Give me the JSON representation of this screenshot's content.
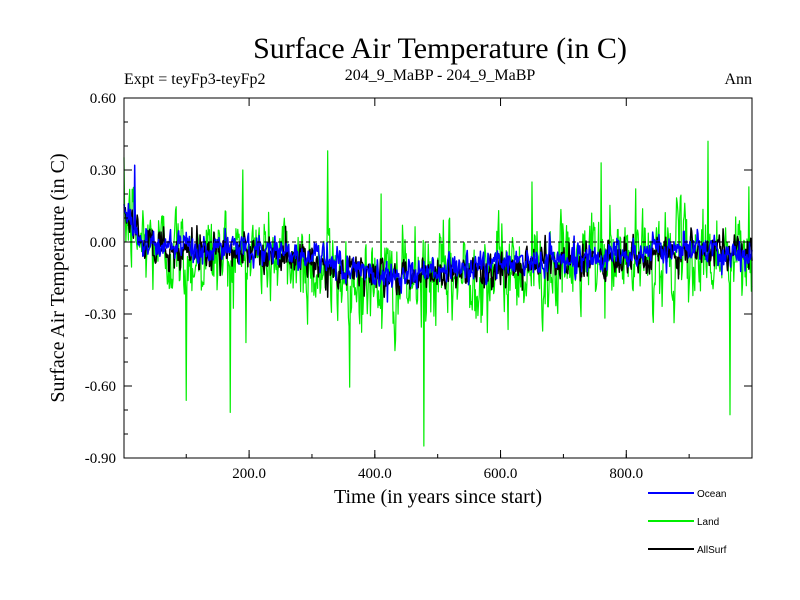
{
  "chart_data": {
    "type": "line",
    "title": "Surface Air Temperature (in C)",
    "subtitle_left": "Expt = teyFp3-teyFp2",
    "subtitle_center": "204_9_MaBP - 204_9_MaBP",
    "subtitle_right": "Ann",
    "xlabel": "Time (in years since start)",
    "ylabel": "Surface Air Temperature (in C)",
    "xlim": [
      1,
      1000
    ],
    "ylim": [
      -0.9,
      0.6
    ],
    "x_ticks": [
      200,
      400,
      600,
      800
    ],
    "x_tick_labels": [
      "200.0",
      "400.0",
      "600.0",
      "800.0"
    ],
    "y_ticks": [
      0.6,
      0.3,
      0.0,
      -0.3,
      -0.6,
      -0.9
    ],
    "y_tick_labels": [
      "0.60",
      "0.30",
      "0.00",
      "-0.30",
      "-0.60",
      "-0.90"
    ],
    "zero_line": 0.0,
    "legend_position": "bottom-right",
    "n_points": 1000,
    "series": [
      {
        "name": "Land",
        "color": "#00ee00",
        "mean_profile": [
          [
            1,
            0.1
          ],
          [
            30,
            0.0
          ],
          [
            100,
            -0.06
          ],
          [
            200,
            -0.04
          ],
          [
            300,
            -0.1
          ],
          [
            400,
            -0.19
          ],
          [
            480,
            -0.16
          ],
          [
            600,
            -0.12
          ],
          [
            700,
            -0.1
          ],
          [
            800,
            -0.07
          ],
          [
            900,
            -0.05
          ],
          [
            1000,
            -0.08
          ]
        ],
        "noise_sd": 0.14,
        "extremes": [
          [
            14,
            0.22
          ],
          [
            100,
            -0.66
          ],
          [
            170,
            -0.71
          ],
          [
            190,
            0.3
          ],
          [
            325,
            0.38
          ],
          [
            410,
            0.2
          ],
          [
            478,
            -0.85
          ],
          [
            650,
            0.25
          ],
          [
            760,
            0.33
          ],
          [
            930,
            0.42
          ],
          [
            965,
            -0.72
          ],
          [
            995,
            0.23
          ]
        ]
      },
      {
        "name": "Ocean",
        "color": "#0000ff",
        "mean_profile": [
          [
            1,
            0.14
          ],
          [
            30,
            0.0
          ],
          [
            100,
            -0.04
          ],
          [
            200,
            -0.02
          ],
          [
            300,
            -0.06
          ],
          [
            400,
            -0.14
          ],
          [
            480,
            -0.13
          ],
          [
            600,
            -0.09
          ],
          [
            700,
            -0.07
          ],
          [
            800,
            -0.05
          ],
          [
            900,
            -0.02
          ],
          [
            1000,
            -0.05
          ]
        ],
        "noise_sd": 0.045,
        "extremes": [
          [
            8,
            0.16
          ],
          [
            18,
            0.32
          ],
          [
            420,
            -0.25
          ]
        ]
      },
      {
        "name": "AllSurf",
        "color": "#000000",
        "mean_profile": [
          [
            1,
            0.13
          ],
          [
            30,
            0.0
          ],
          [
            100,
            -0.05
          ],
          [
            200,
            -0.03
          ],
          [
            300,
            -0.08
          ],
          [
            400,
            -0.16
          ],
          [
            480,
            -0.14
          ],
          [
            600,
            -0.11
          ],
          [
            700,
            -0.08
          ],
          [
            800,
            -0.06
          ],
          [
            900,
            -0.03
          ],
          [
            1000,
            -0.06
          ]
        ],
        "noise_sd": 0.055,
        "extremes": [
          [
            325,
            -0.23
          ],
          [
            415,
            -0.23
          ],
          [
            635,
            -0.2
          ]
        ]
      }
    ]
  }
}
